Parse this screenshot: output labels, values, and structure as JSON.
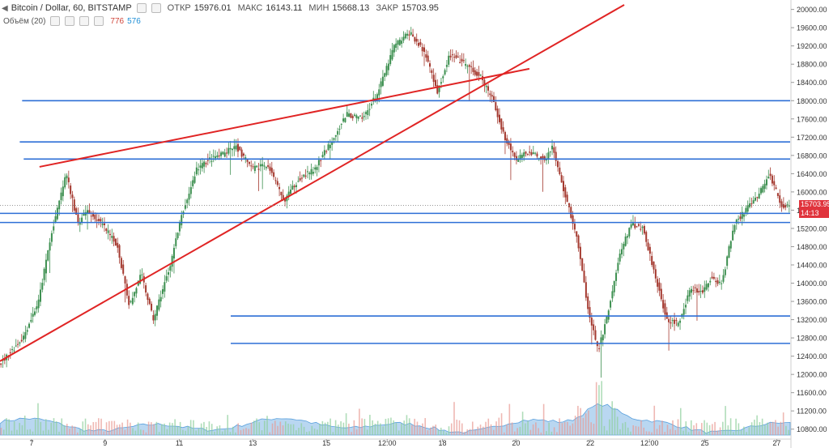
{
  "header": {
    "symbol": "Bitcoin / Dollar, 60, BITSTAMP",
    "open_label": "ОТКР",
    "open": "15976.01",
    "high_label": "МАКС",
    "high": "16143.11",
    "low_label": "МИН",
    "low": "15668.13",
    "close_label": "ЗАКР",
    "close": "15703.95"
  },
  "volume_legend": {
    "label": "Объём (20)",
    "v1": "776",
    "v2": "576"
  },
  "price_tag": {
    "price": "15703.95",
    "timer": "14:13"
  },
  "colors": {
    "up": "#3c8f4f",
    "down": "#a4392f",
    "hline": "#2d6fd6",
    "trend": "#e02424",
    "tag_red": "#e0343d",
    "volume_area": "#7fb6e6"
  },
  "chart_data": {
    "type": "candlestick",
    "yaxis_ticks": [
      "20000.00",
      "19600.00",
      "19200.00",
      "18800.00",
      "18400.00",
      "18000.00",
      "17600.00",
      "17200.00",
      "16800.00",
      "16400.00",
      "16000.00",
      "15600.00",
      "15200.00",
      "14800.00",
      "14400.00",
      "14000.00",
      "13600.00",
      "13200.00",
      "12800.00",
      "12400.00",
      "12000.00",
      "11600.00",
      "11200.00",
      "10800.00"
    ],
    "ylim": [
      10600,
      20100
    ],
    "xaxis_ticks": [
      {
        "label": "7",
        "x": 0.04
      },
      {
        "label": "9",
        "x": 0.133
      },
      {
        "label": "11",
        "x": 0.227
      },
      {
        "label": "13",
        "x": 0.32
      },
      {
        "label": "15",
        "x": 0.413
      },
      {
        "label": "12:00",
        "x": 0.49
      },
      {
        "label": "18",
        "x": 0.56
      },
      {
        "label": "20",
        "x": 0.653
      },
      {
        "label": "22",
        "x": 0.747
      },
      {
        "label": "12:00",
        "x": 0.822
      },
      {
        "label": "25",
        "x": 0.892
      },
      {
        "label": "27",
        "x": 0.983
      }
    ],
    "price_path": [
      [
        0,
        12200
      ],
      [
        0.03,
        12800
      ],
      [
        0.05,
        13600
      ],
      [
        0.065,
        15000
      ],
      [
        0.085,
        16400
      ],
      [
        0.1,
        15300
      ],
      [
        0.11,
        15600
      ],
      [
        0.13,
        15300
      ],
      [
        0.15,
        14800
      ],
      [
        0.165,
        13500
      ],
      [
        0.18,
        14200
      ],
      [
        0.195,
        13200
      ],
      [
        0.215,
        14300
      ],
      [
        0.23,
        15400
      ],
      [
        0.25,
        16500
      ],
      [
        0.265,
        16700
      ],
      [
        0.28,
        16800
      ],
      [
        0.3,
        17000
      ],
      [
        0.32,
        16500
      ],
      [
        0.34,
        16600
      ],
      [
        0.36,
        15800
      ],
      [
        0.38,
        16300
      ],
      [
        0.4,
        16500
      ],
      [
        0.42,
        17100
      ],
      [
        0.44,
        17700
      ],
      [
        0.46,
        17600
      ],
      [
        0.48,
        18200
      ],
      [
        0.5,
        19200
      ],
      [
        0.52,
        19500
      ],
      [
        0.54,
        19000
      ],
      [
        0.555,
        18200
      ],
      [
        0.57,
        19000
      ],
      [
        0.59,
        18800
      ],
      [
        0.61,
        18500
      ],
      [
        0.625,
        18000
      ],
      [
        0.64,
        17200
      ],
      [
        0.655,
        16700
      ],
      [
        0.67,
        16900
      ],
      [
        0.69,
        16700
      ],
      [
        0.7,
        17000
      ],
      [
        0.715,
        16000
      ],
      [
        0.73,
        15100
      ],
      [
        0.745,
        13500
      ],
      [
        0.758,
        12500
      ],
      [
        0.77,
        13300
      ],
      [
        0.785,
        14600
      ],
      [
        0.8,
        15300
      ],
      [
        0.815,
        15200
      ],
      [
        0.83,
        14200
      ],
      [
        0.845,
        13200
      ],
      [
        0.86,
        13100
      ],
      [
        0.875,
        13900
      ],
      [
        0.89,
        13800
      ],
      [
        0.9,
        14100
      ],
      [
        0.915,
        14000
      ],
      [
        0.93,
        15300
      ],
      [
        0.945,
        15600
      ],
      [
        0.96,
        15900
      ],
      [
        0.975,
        16400
      ],
      [
        0.99,
        15703
      ]
    ],
    "horizontal_levels": [
      {
        "price": 18000,
        "x0": 0.028,
        "x1": 1.0
      },
      {
        "price": 17095,
        "x0": 0.025,
        "x1": 1.0
      },
      {
        "price": 16720,
        "x0": 0.03,
        "x1": 1.0
      },
      {
        "price": 15530,
        "x0": 0.0,
        "x1": 1.0
      },
      {
        "price": 15330,
        "x0": 0.0,
        "x1": 1.0
      },
      {
        "price": 13280,
        "x0": 0.292,
        "x1": 1.0
      },
      {
        "price": 12680,
        "x0": 0.292,
        "x1": 1.0
      }
    ],
    "trend_lines": [
      {
        "x0": 0.0,
        "y0": 12290,
        "x1": 0.79,
        "y1": 20100
      },
      {
        "x0": 0.05,
        "y0": 16550,
        "x1": 0.67,
        "y1": 18700
      }
    ]
  }
}
